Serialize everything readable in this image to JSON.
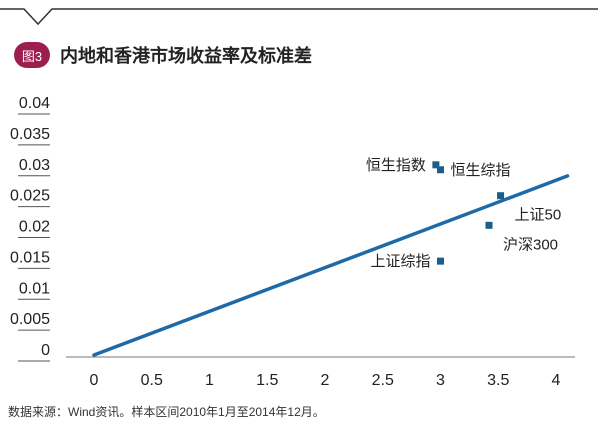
{
  "figure_badge": "图3",
  "note": "数据来源：Wind资讯。样本区间2010年1月至2014年12月。",
  "chart_data": {
    "type": "scatter",
    "title": "内地和香港市场收益率及标准差",
    "xlabel": "",
    "ylabel": "",
    "xlim": [
      0,
      4
    ],
    "ylim": [
      0,
      0.04
    ],
    "x_ticks": [
      "0",
      "0.5",
      "1",
      "1.5",
      "2",
      "2.5",
      "3",
      "3.5",
      "4"
    ],
    "y_ticks": [
      "0",
      "0.005",
      "0.01",
      "0.015",
      "0.02",
      "0.025",
      "0.03",
      "0.035",
      "0.04"
    ],
    "x_tick_values": [
      0,
      0.5,
      1,
      1.5,
      2,
      2.5,
      3,
      3.5,
      4
    ],
    "y_tick_values": [
      0,
      0.005,
      0.01,
      0.015,
      0.02,
      0.025,
      0.03,
      0.035,
      0.04
    ],
    "points": [
      {
        "label": "恒生指数",
        "x": 2.96,
        "y": 0.0308,
        "label_side": "left"
      },
      {
        "label": "恒生综指",
        "x": 3.0,
        "y": 0.03,
        "label_side": "right"
      },
      {
        "label": "上证50",
        "x": 3.52,
        "y": 0.0258,
        "label_side": "below-right"
      },
      {
        "label": "沪深300",
        "x": 3.42,
        "y": 0.021,
        "label_side": "below-right"
      },
      {
        "label": "上证综指",
        "x": 3.0,
        "y": 0.0152,
        "label_side": "left"
      }
    ],
    "trend_line": {
      "x": [
        0,
        4.1
      ],
      "y": [
        0,
        0.029
      ]
    },
    "colors": {
      "marker": "#1b5e8c",
      "line": "#1e6aa8",
      "badge": "#9b1e4f",
      "text": "#222222"
    }
  }
}
